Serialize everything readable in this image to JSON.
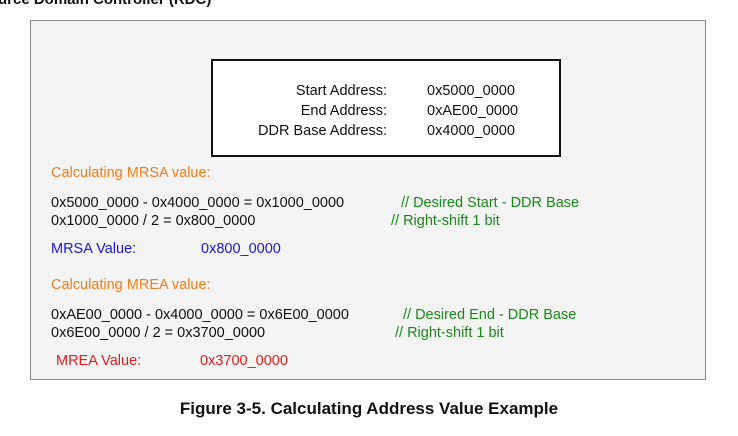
{
  "header": {
    "partial_title": "urce Domain Controller (RDC)"
  },
  "address_box": {
    "rows": [
      {
        "label": "Start Address:",
        "value": "0x5000_0000"
      },
      {
        "label": "End Address:",
        "value": "0xAE00_0000"
      },
      {
        "label": "DDR Base Address:",
        "value": "0x4000_0000"
      }
    ]
  },
  "mrsa": {
    "heading": "Calculating MRSA value:",
    "calc1": "0x5000_0000 - 0x4000_0000 = 0x1000_0000",
    "comment1": "// Desired Start - DDR Base",
    "calc2": "0x1000_0000 / 2 = 0x800_0000",
    "comment2": "// Right-shift 1 bit",
    "result_label": "MRSA Value:",
    "result_value": "0x800_0000"
  },
  "mrea": {
    "heading": "Calculating MREA value:",
    "calc1": "0xAE00_0000 - 0x4000_0000 = 0x6E00_0000",
    "comment1": "// Desired End - DDR Base",
    "calc2": "0x6E00_0000 / 2 = 0x3700_0000",
    "comment2": "// Right-shift 1 bit",
    "result_label": "MREA Value:",
    "result_value": "0x3700_0000"
  },
  "caption": "Figure 3-5. Calculating Address Value Example",
  "colors": {
    "heading": "#f07c1e",
    "comment": "#178a17",
    "mrsa_result": "#1616e0",
    "mrea_result": "#e21b1b"
  }
}
